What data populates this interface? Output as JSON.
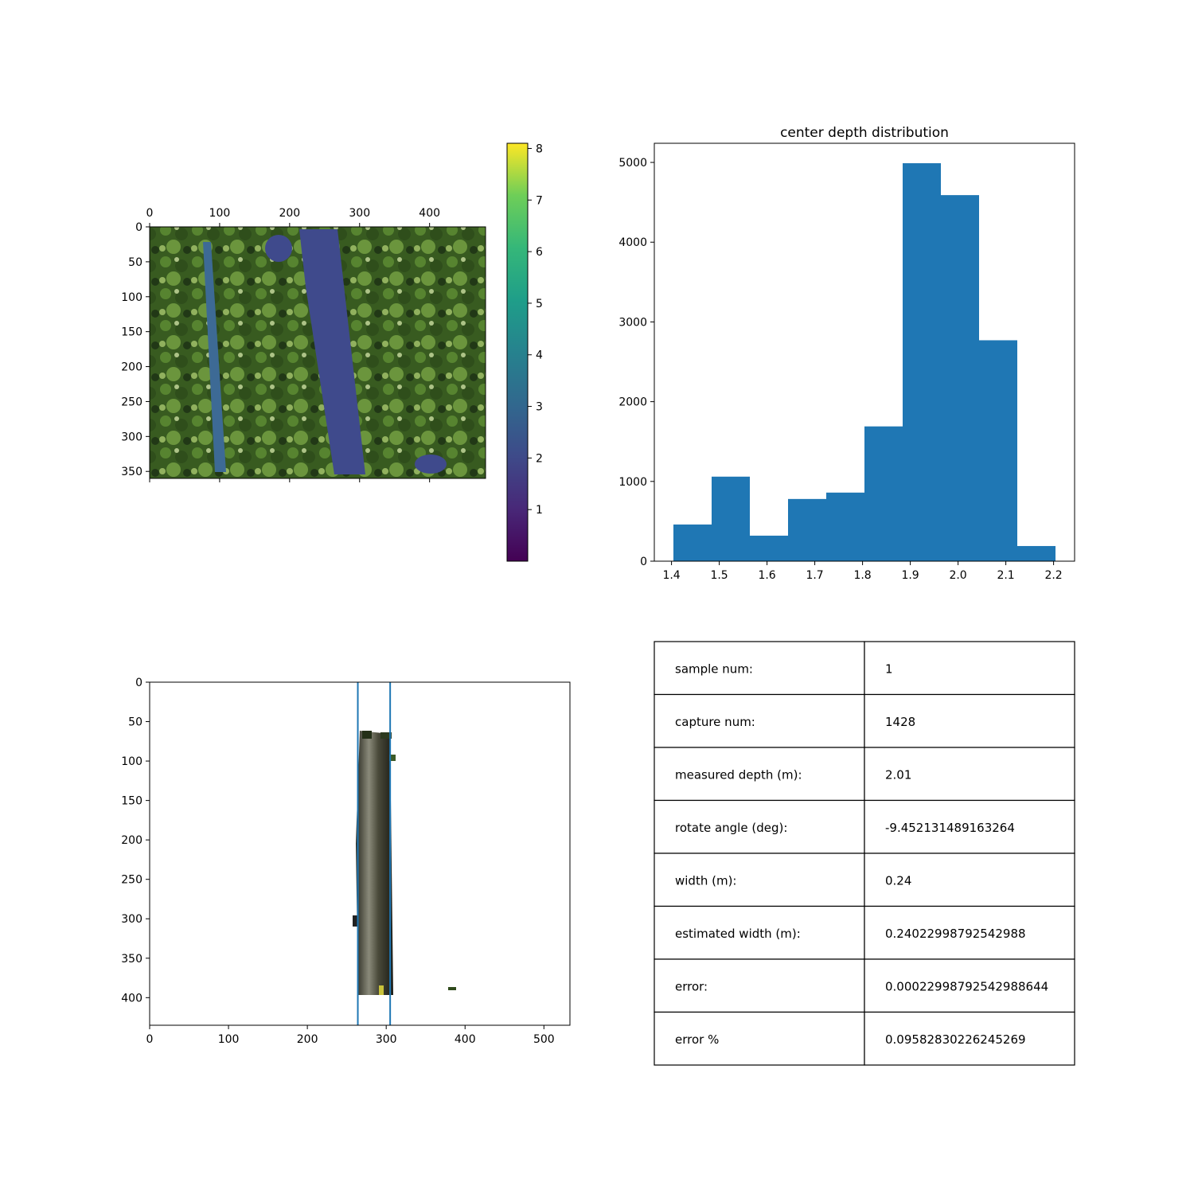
{
  "chart_data": [
    {
      "type": "heatmap",
      "description": "depth overlay on forest photo",
      "title": "",
      "xlabel": "",
      "ylabel": "",
      "xlim": [
        0,
        480
      ],
      "ylim": [
        360,
        0
      ],
      "x_ticks": [
        "0",
        "100",
        "200",
        "300",
        "400"
      ],
      "y_ticks": [
        "0",
        "50",
        "100",
        "150",
        "200",
        "250",
        "300",
        "350"
      ],
      "colorbar": {
        "colormap": "viridis",
        "range": [
          0,
          8.1
        ],
        "ticks": [
          "1",
          "2",
          "3",
          "4",
          "5",
          "6",
          "7",
          "8"
        ]
      },
      "colors": {
        "left_trunk": "#3d6a95",
        "right_trunk": "#3f4a8c",
        "foliage": "#3d6b22"
      }
    },
    {
      "type": "bar",
      "title": "center depth distribution",
      "xlabel": "",
      "ylabel": "",
      "bin_edges": [
        1.404,
        1.484,
        1.564,
        1.644,
        1.724,
        1.804,
        1.884,
        1.964,
        2.044,
        2.124,
        2.204
      ],
      "values": [
        460,
        1060,
        320,
        780,
        860,
        1690,
        4990,
        4590,
        2770,
        190
      ],
      "xlim": [
        1.364,
        2.244
      ],
      "ylim": [
        0,
        5240
      ],
      "x_ticks": [
        "1.4",
        "1.5",
        "1.6",
        "1.7",
        "1.8",
        "1.9",
        "2.0",
        "2.1",
        "2.2"
      ],
      "y_ticks": [
        "0",
        "1000",
        "2000",
        "3000",
        "4000",
        "5000"
      ],
      "colors": {
        "bar": "#1f77b4"
      }
    },
    {
      "type": "scatter",
      "description": "cropped trunk image with vertical boundary lines",
      "title": "",
      "xlabel": "",
      "ylabel": "",
      "xlim": [
        0,
        533
      ],
      "ylim": [
        435,
        0
      ],
      "vlines": [
        264,
        305
      ],
      "x_ticks": [
        "0",
        "100",
        "200",
        "300",
        "400",
        "500"
      ],
      "y_ticks": [
        "0",
        "50",
        "100",
        "150",
        "200",
        "250",
        "300",
        "350",
        "400"
      ],
      "colors": {
        "line": "#1f77b4",
        "bark": "#4a4a3a"
      }
    },
    {
      "type": "table",
      "rows": [
        [
          "sample num:",
          "1"
        ],
        [
          "capture num:",
          "1428"
        ],
        [
          "measured depth (m):",
          "2.01"
        ],
        [
          "rotate angle (deg):",
          "-9.452131489163264"
        ],
        [
          "width (m):",
          "0.24"
        ],
        [
          "estimated width (m):",
          "0.24022998792542988"
        ],
        [
          "error:",
          "0.00022998792542988644"
        ],
        [
          "error %",
          "0.09582830226245269"
        ]
      ]
    }
  ]
}
